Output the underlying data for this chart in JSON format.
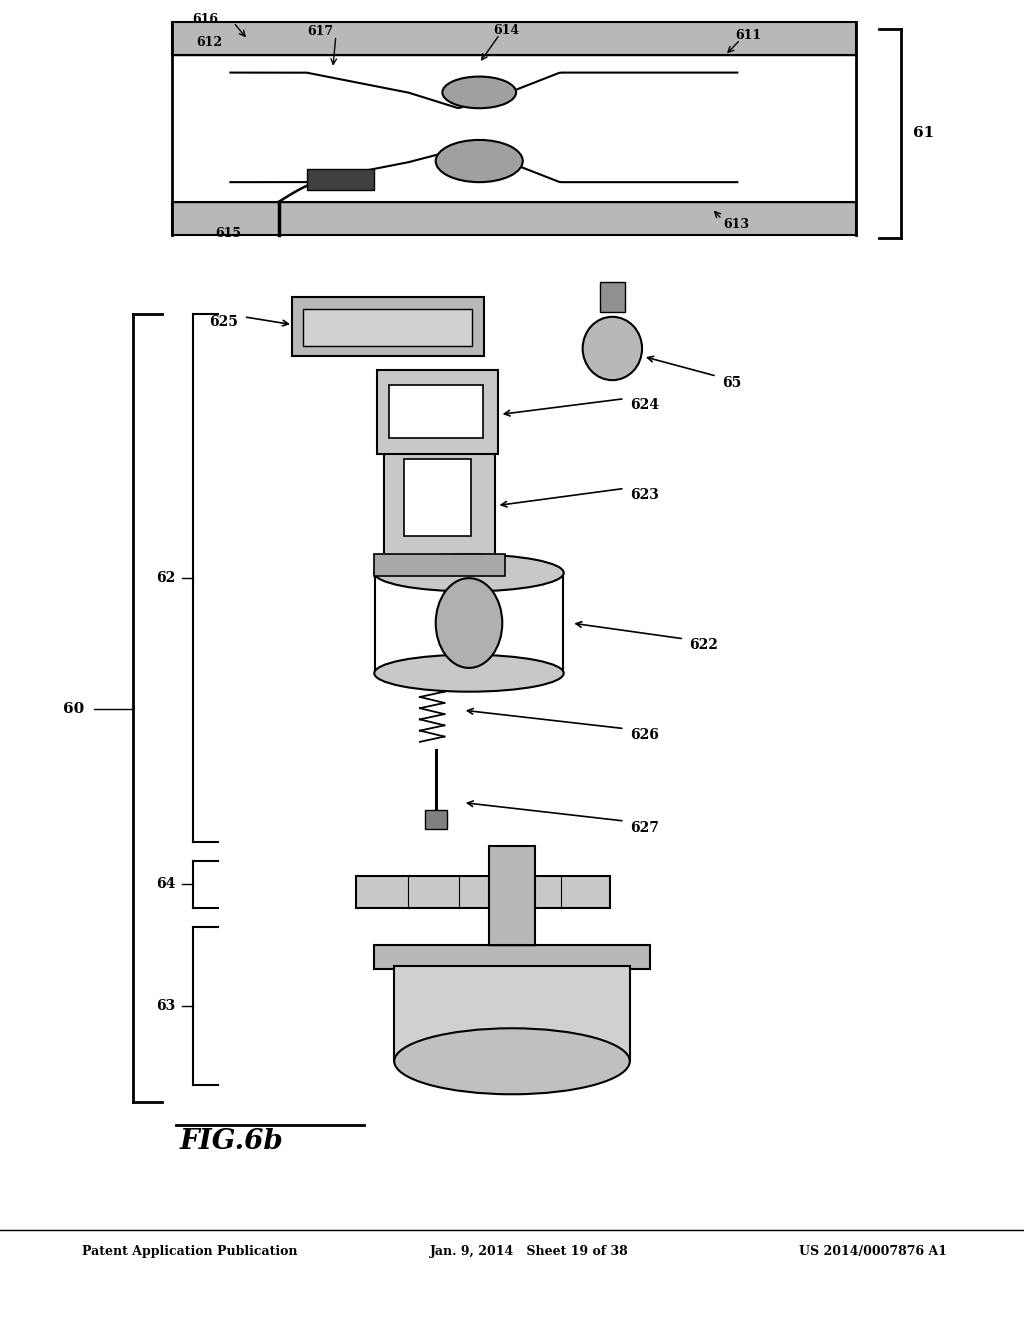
{
  "background_color": "#ffffff",
  "header_left": "Patent Application Publication",
  "header_mid": "Jan. 9, 2014   Sheet 19 of 38",
  "header_right": "US 2014/0007876 A1",
  "fig_title": "FIG.6b"
}
